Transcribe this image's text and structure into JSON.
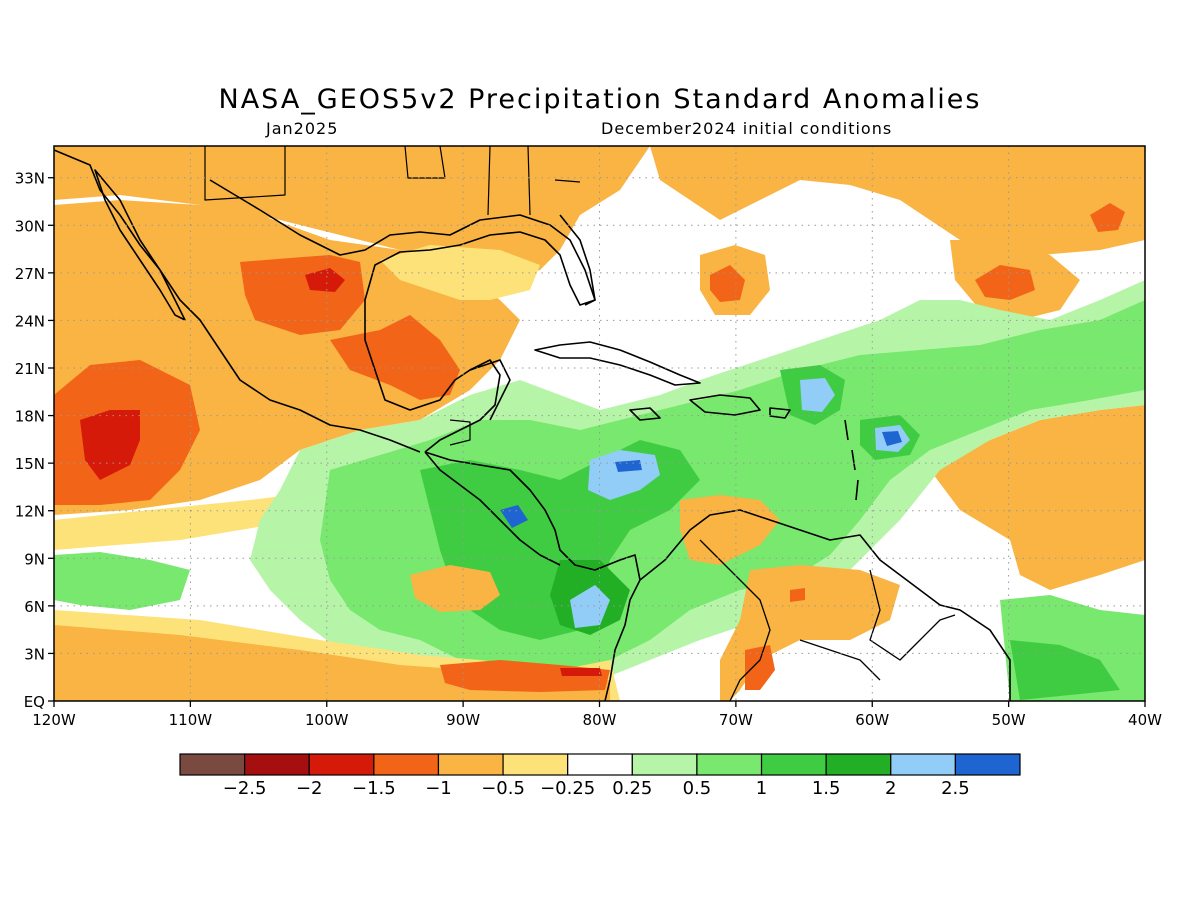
{
  "title": "NASA_GEOS5v2 Precipitation Standard Anomalies",
  "subtitle_left": "Jan2025",
  "subtitle_right": "December2024 initial conditions",
  "map": {
    "lon_range": [
      -120,
      -40
    ],
    "lat_range": [
      0,
      35
    ],
    "lon_ticks": [
      {
        "value": -120,
        "label": "120W"
      },
      {
        "value": -110,
        "label": "110W"
      },
      {
        "value": -100,
        "label": "100W"
      },
      {
        "value": -90,
        "label": "90W"
      },
      {
        "value": -80,
        "label": "80W"
      },
      {
        "value": -70,
        "label": "70W"
      },
      {
        "value": -60,
        "label": "60W"
      },
      {
        "value": -50,
        "label": "50W"
      },
      {
        "value": -40,
        "label": "40W"
      }
    ],
    "lat_ticks": [
      {
        "value": 0,
        "label": "EQ"
      },
      {
        "value": 3,
        "label": "3N"
      },
      {
        "value": 6,
        "label": "6N"
      },
      {
        "value": 9,
        "label": "9N"
      },
      {
        "value": 12,
        "label": "12N"
      },
      {
        "value": 15,
        "label": "15N"
      },
      {
        "value": 18,
        "label": "18N"
      },
      {
        "value": 21,
        "label": "21N"
      },
      {
        "value": 24,
        "label": "24N"
      },
      {
        "value": 27,
        "label": "27N"
      },
      {
        "value": 30,
        "label": "30N"
      },
      {
        "value": 33,
        "label": "33N"
      }
    ],
    "grid": "dotted"
  },
  "colorbar": {
    "colors": [
      "#7a4a40",
      "#a50f0f",
      "#d61a0a",
      "#f26418",
      "#f9b443",
      "#fde27a",
      "#ffffff",
      "#b6f5a8",
      "#78e86e",
      "#3fcc43",
      "#22af26",
      "#92cdf7",
      "#1f65d2"
    ],
    "labels": [
      "−2.5",
      "−2",
      "−1.5",
      "−1",
      "−0.5",
      "−0.25",
      "0.25",
      "0.5",
      "1",
      "1.5",
      "2",
      "2.5"
    ]
  },
  "palette": {
    "orange_light": "#f9b443",
    "yellow": "#fde27a",
    "orange": "#f26418",
    "red": "#d61a0a",
    "green_pale": "#b6f5a8",
    "green_light": "#78e86e",
    "green": "#3fcc43",
    "green_dark": "#22af26",
    "blue_light": "#92cdf7",
    "blue": "#1f65d2"
  }
}
